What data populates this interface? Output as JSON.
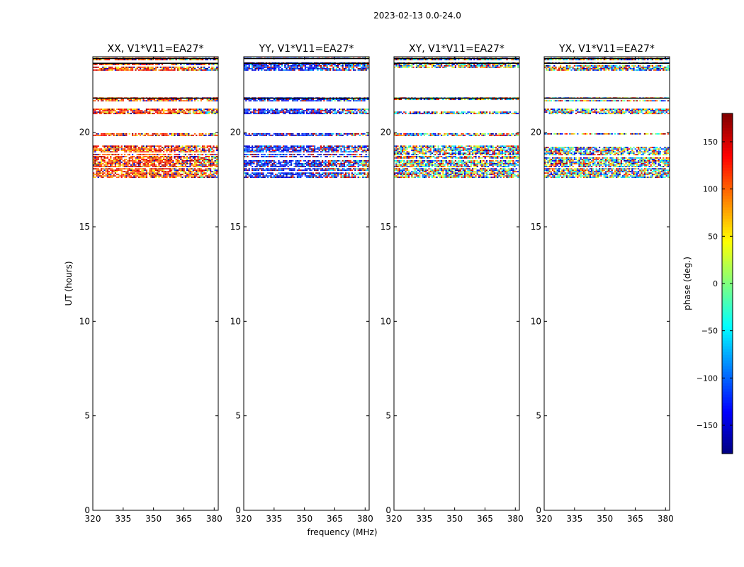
{
  "figure": {
    "suptitle": "2023-02-13 0.0-24.0",
    "xlabel": "frequency (MHz)",
    "ylabel": "UT (hours)",
    "colorbar_label": "phase (deg.)"
  },
  "chart_data": {
    "type": "heatmap",
    "x_range": [
      320,
      382
    ],
    "x_ticks": [
      320,
      335,
      350,
      365,
      380
    ],
    "y_range": [
      0,
      24
    ],
    "y_ticks": [
      0,
      5,
      10,
      15,
      20
    ],
    "color_range": [
      -180,
      180
    ],
    "color_ticks": [
      -150,
      -100,
      -50,
      0,
      50,
      100,
      150
    ],
    "panels": [
      {
        "title": "XX, V1*V11=EA27*",
        "mean_phase_deg": 120
      },
      {
        "title": "YY, V1*V11=EA27*",
        "mean_phase_deg": -140
      },
      {
        "title": "XY, V1*V11=EA27*",
        "mean_phase_deg": null
      },
      {
        "title": "YX, V1*V11=EA27*",
        "mean_phase_deg": null
      }
    ],
    "data_bands_ut": [
      [
        23.3,
        23.7
      ],
      [
        23.8,
        23.95
      ],
      [
        21.7,
        21.85
      ],
      [
        21.0,
        21.25
      ],
      [
        19.85,
        19.95
      ],
      [
        18.8,
        19.3
      ],
      [
        18.2,
        18.75
      ],
      [
        17.6,
        18.1
      ]
    ],
    "colormap": [
      "#00007f",
      "#0000ff",
      "#007fff",
      "#00ffff",
      "#7fff7f",
      "#ffff00",
      "#ff7f00",
      "#ff0000",
      "#7f0000"
    ]
  }
}
